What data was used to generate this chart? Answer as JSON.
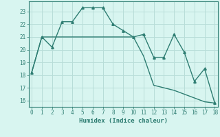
{
  "line1_x": [
    0,
    1,
    2,
    3,
    4,
    5,
    6,
    7,
    8,
    9,
    10,
    11,
    12,
    13,
    14,
    15,
    16,
    17,
    18
  ],
  "line1_y": [
    18.2,
    21.0,
    20.2,
    22.2,
    22.2,
    23.3,
    23.3,
    23.3,
    22.0,
    21.5,
    21.0,
    21.2,
    19.4,
    19.4,
    21.2,
    19.8,
    17.5,
    18.5,
    15.8
  ],
  "line2_x": [
    0,
    1,
    2,
    3,
    4,
    5,
    6,
    7,
    8,
    9,
    10,
    11,
    12,
    13,
    14,
    15,
    16,
    17,
    18
  ],
  "line2_y": [
    18.2,
    21.0,
    21.0,
    21.0,
    21.0,
    21.0,
    21.0,
    21.0,
    21.0,
    21.0,
    21.0,
    19.5,
    17.2,
    17.0,
    16.8,
    16.5,
    16.2,
    15.9,
    15.8
  ],
  "color": "#2e7d72",
  "background_color": "#d8f5f0",
  "grid_color": "#b8ddd8",
  "xlabel": "Humidex (Indice chaleur)",
  "ylim": [
    15.5,
    23.8
  ],
  "xlim": [
    -0.3,
    18.3
  ],
  "yticks": [
    16,
    17,
    18,
    19,
    20,
    21,
    22,
    23
  ],
  "xticks": [
    0,
    1,
    2,
    3,
    4,
    5,
    6,
    7,
    8,
    9,
    10,
    11,
    12,
    13,
    14,
    15,
    16,
    17,
    18
  ],
  "marker": "^",
  "markersize": 2.5,
  "linewidth": 1.0
}
